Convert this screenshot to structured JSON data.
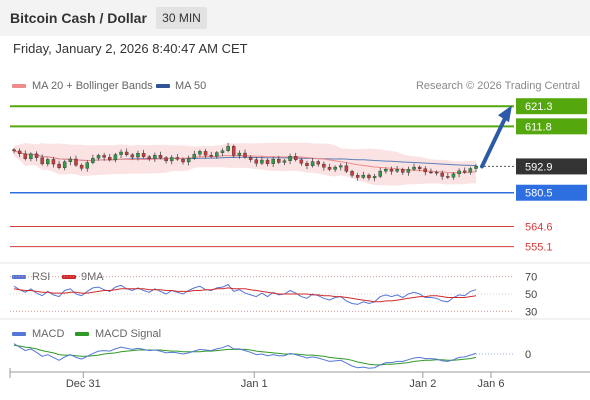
{
  "header": {
    "title": "Bitcoin Cash / Dollar",
    "timeframe": "30 MIN"
  },
  "datetime": "Friday, January 2, 2026 8:40:47 AM CET",
  "legend": {
    "ma20": "MA 20 + Bollinger Bands",
    "ma50": "MA 50",
    "credit": "Research © 2026 Trading Central",
    "rsi": "RSI",
    "rsi_ma": "9MA",
    "macd": "MACD",
    "macd_signal": "MACD Signal"
  },
  "colors": {
    "resistance": "#55a70e",
    "support": "#2d6fe0",
    "minor_support": "#d43d3d",
    "candle_up": "#2f9c47",
    "candle_down": "#c83c3c",
    "bollinger": "#f9d9d9",
    "ma20": "#ee8c8c",
    "ma50": "#5b7fb8",
    "arrow": "#2b5aa8",
    "current": "#333333",
    "rsi": "#5577d6",
    "rsi_ma": "#d22a2a",
    "macd": "#5577d6",
    "macd_signal": "#2f9a28"
  },
  "chart_data": [
    {
      "type": "line",
      "title": "Bitcoin Cash / Dollar",
      "subtitle": "30 MIN",
      "ylim": [
        545,
        628
      ],
      "x_ticks": [
        "Dec 31",
        "Jan 1",
        "Jan 2",
        "Jan 6"
      ],
      "price_series": [
        600.2,
        598.9,
        596.5,
        598.8,
        597.0,
        594.1,
        596.2,
        594.0,
        592.3,
        595.1,
        596.4,
        593.5,
        592.0,
        594.7,
        596.8,
        598.1,
        597.2,
        596.0,
        598.5,
        599.7,
        598.4,
        597.3,
        599.1,
        597.5,
        596.6,
        598.2,
        597.0,
        595.5,
        597.1,
        596.3,
        595.0,
        596.8,
        598.7,
        600.0,
        598.2,
        597.7,
        599.4,
        600.3,
        602.4,
        598.1,
        599.2,
        597.3,
        596.1,
        594.4,
        595.9,
        594.2,
        596.3,
        594.8,
        595.6,
        597.7,
        596.0,
        594.4,
        593.2,
        595.2,
        594.0,
        592.5,
        591.5,
        592.6,
        593.2,
        590.6,
        588.7,
        587.7,
        588.8,
        587.5,
        588.2,
        590.7,
        591.6,
        590.6,
        591.5,
        590.1,
        591.6,
        592.6,
        591.8,
        590.3,
        590.2,
        589.8,
        588.2,
        587.8,
        589.4,
        590.8,
        590.2,
        591.9,
        592.9
      ],
      "indicators": {
        "ma20": "MA 20 + Bollinger Bands",
        "ma50": "MA 50"
      },
      "levels": [
        {
          "label": "621.3",
          "value": 621.3,
          "kind": "resistance"
        },
        {
          "label": "611.8",
          "value": 611.8,
          "kind": "resistance"
        },
        {
          "label": "592.9",
          "value": 592.9,
          "kind": "current"
        },
        {
          "label": "580.5",
          "value": 580.5,
          "kind": "support"
        },
        {
          "label": "564.6",
          "value": 564.6,
          "kind": "minor-support"
        },
        {
          "label": "555.1",
          "value": 555.1,
          "kind": "minor-support"
        }
      ],
      "forecast_target": 621.3,
      "annotation": "Research © 2026 Trading Central"
    },
    {
      "type": "line",
      "series": [
        {
          "name": "RSI",
          "values": [
            59,
            55,
            52,
            56,
            51,
            48,
            53,
            49,
            47,
            54,
            56,
            50,
            48,
            53,
            57,
            58,
            55,
            53,
            58,
            60,
            56,
            54,
            57,
            54,
            52,
            56,
            53,
            50,
            54,
            52,
            50,
            54,
            57,
            59,
            55,
            54,
            57,
            58,
            61,
            53,
            55,
            51,
            49,
            47,
            51,
            47,
            52,
            49,
            50,
            54,
            51,
            47,
            45,
            50,
            48,
            45,
            43,
            46,
            47,
            42,
            39,
            38,
            41,
            39,
            41,
            47,
            49,
            47,
            49,
            46,
            50,
            52,
            50,
            46,
            46,
            45,
            42,
            41,
            46,
            49,
            48,
            53,
            55
          ]
        },
        {
          "name": "9MA",
          "values": [
            56,
            55,
            54,
            54,
            53,
            52,
            52,
            51,
            51,
            51,
            52,
            52,
            51,
            51,
            52,
            53,
            54,
            54,
            55,
            56,
            56,
            56,
            56,
            56,
            55,
            55,
            55,
            54,
            54,
            53,
            53,
            53,
            54,
            54,
            55,
            55,
            56,
            56,
            57,
            56,
            56,
            56,
            55,
            54,
            53,
            52,
            51,
            50,
            50,
            50,
            50,
            50,
            50,
            49,
            49,
            48,
            48,
            47,
            47,
            46,
            45,
            44,
            43,
            42,
            41,
            41,
            42,
            42,
            43,
            44,
            45,
            46,
            47,
            47,
            48,
            48,
            47,
            46,
            46,
            46,
            46,
            47,
            48
          ]
        }
      ],
      "ylim": [
        20,
        80
      ],
      "y_ticks": [
        70,
        50,
        30
      ]
    },
    {
      "type": "line",
      "series": [
        {
          "name": "MACD",
          "values": [
            1.8,
            1.2,
            0.6,
            0.9,
            0.3,
            -0.4,
            -0.1,
            -0.6,
            -1.1,
            -0.5,
            -0.1,
            -0.6,
            -0.9,
            -0.4,
            0.1,
            0.5,
            0.6,
            0.5,
            0.9,
            1.2,
            1.0,
            0.8,
            1.0,
            0.8,
            0.6,
            0.7,
            0.5,
            0.2,
            0.3,
            0.2,
            0.0,
            0.2,
            0.5,
            0.8,
            0.7,
            0.6,
            0.9,
            1.1,
            1.5,
            0.9,
            0.9,
            0.6,
            0.3,
            -0.1,
            0.0,
            -0.3,
            -0.1,
            -0.3,
            -0.3,
            0.1,
            -0.1,
            -0.4,
            -0.7,
            -0.5,
            -0.7,
            -1.0,
            -1.3,
            -1.2,
            -1.1,
            -1.6,
            -2.1,
            -2.4,
            -2.3,
            -2.5,
            -2.4,
            -1.9,
            -1.5,
            -1.5,
            -1.3,
            -1.3,
            -1.0,
            -0.7,
            -0.6,
            -0.8,
            -0.8,
            -0.9,
            -1.2,
            -1.3,
            -1.0,
            -0.6,
            -0.5,
            -0.2,
            0.1
          ]
        },
        {
          "name": "MACD Signal",
          "values": [
            1.5,
            1.4,
            1.2,
            1.1,
            0.9,
            0.6,
            0.4,
            0.2,
            -0.1,
            -0.2,
            -0.2,
            -0.3,
            -0.4,
            -0.4,
            -0.3,
            -0.2,
            0.0,
            0.1,
            0.2,
            0.4,
            0.5,
            0.6,
            0.7,
            0.7,
            0.7,
            0.7,
            0.7,
            0.6,
            0.5,
            0.5,
            0.4,
            0.4,
            0.4,
            0.4,
            0.5,
            0.5,
            0.6,
            0.7,
            0.8,
            0.8,
            0.8,
            0.8,
            0.7,
            0.5,
            0.4,
            0.3,
            0.2,
            0.1,
            0.0,
            0.0,
            0.0,
            -0.1,
            -0.2,
            -0.2,
            -0.3,
            -0.4,
            -0.6,
            -0.7,
            -0.8,
            -0.9,
            -1.1,
            -1.4,
            -1.6,
            -1.8,
            -1.9,
            -1.9,
            -1.8,
            -1.8,
            -1.7,
            -1.6,
            -1.5,
            -1.3,
            -1.2,
            -1.1,
            -1.1,
            -1.0,
            -1.0,
            -1.1,
            -1.1,
            -1.0,
            -0.9,
            -0.8,
            -0.6
          ]
        }
      ],
      "y_ticks": [
        0
      ]
    }
  ]
}
